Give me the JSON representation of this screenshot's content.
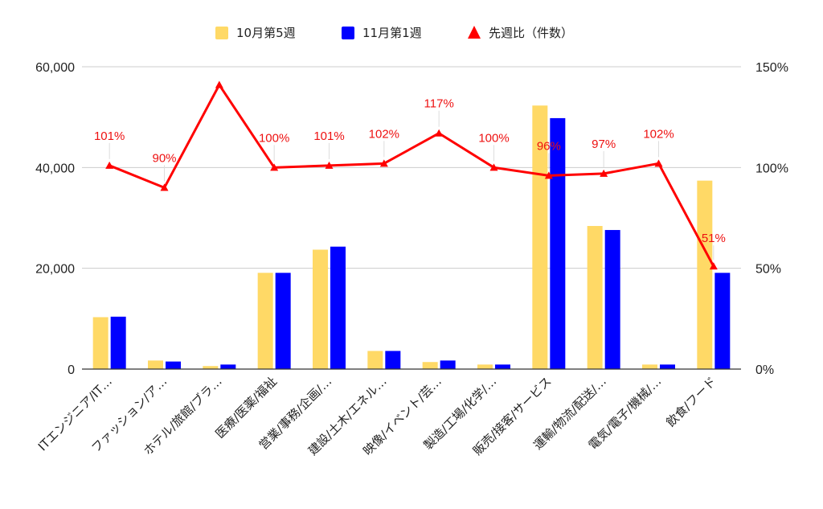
{
  "chart_data": {
    "type": "bar",
    "title": "",
    "categories": [
      "ITエンジニア/IT…",
      "ファッション/ア…",
      "ホテル/旅館/ブラ…",
      "医療/医薬/福祉",
      "営業/事務/企画/…",
      "建設/土木/エネル…",
      "映像/イベント/芸…",
      "製造/工場/化学/…",
      "販売/接客/サービス",
      "運輸/物流/配送/…",
      "電気/電子/機械/…",
      "飲食/フード"
    ],
    "series": [
      {
        "name": "10月第5週",
        "type": "bar",
        "axis": "left",
        "color": "#FFD966",
        "values": [
          10300,
          1700,
          600,
          19100,
          23700,
          3600,
          1400,
          900,
          52300,
          28400,
          900,
          37400
        ]
      },
      {
        "name": "11月第1週",
        "type": "bar",
        "axis": "left",
        "color": "#0000FF",
        "values": [
          10400,
          1500,
          900,
          19100,
          24300,
          3600,
          1700,
          900,
          49800,
          27600,
          900,
          19100
        ]
      },
      {
        "name": "先週比（件数）",
        "type": "line",
        "axis": "right",
        "color": "#FF0000",
        "marker": "triangle",
        "values": [
          101,
          90,
          141,
          100,
          101,
          102,
          117,
          100,
          96,
          97,
          102,
          51
        ],
        "labels": [
          "101%",
          "90%",
          "",
          "100%",
          "101%",
          "102%",
          "117%",
          "100%",
          "96%",
          "97%",
          "102%",
          "51%"
        ]
      }
    ],
    "y_left": {
      "ylim": [
        0,
        60000
      ],
      "ticks": [
        "0",
        "20,000",
        "40,000",
        "60,000"
      ]
    },
    "y_right": {
      "ylim": [
        0,
        150
      ],
      "ticks": [
        "0%",
        "50%",
        "100%",
        "150%"
      ]
    },
    "grid": true,
    "legend": "top-center"
  }
}
